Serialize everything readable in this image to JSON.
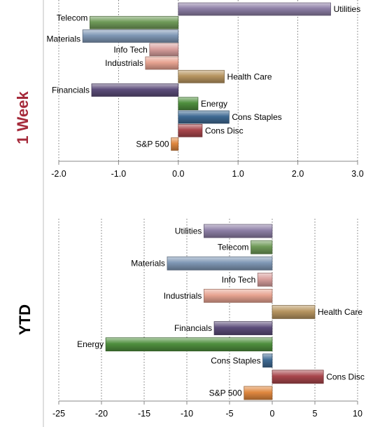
{
  "colors": {
    "Utilities": "#8d7fa6",
    "Telecom": "#6f9a58",
    "Materials": "#7f97b5",
    "Info Tech": "#d9a09e",
    "Industrials": "#e7a391",
    "Health Care": "#b79560",
    "Financials": "#5c4d7a",
    "Energy": "#4f8f3e",
    "Cons Staples": "#3f6a93",
    "Cons Disc": "#a8464c",
    "S&P 500": "#e0883f"
  },
  "chart_data": [
    {
      "type": "bar",
      "orientation": "horizontal",
      "title": "1 Week",
      "title_color": "#a52a3a",
      "categories": [
        "Utilities",
        "Telecom",
        "Materials",
        "Info Tech",
        "Industrials",
        "Health Care",
        "Financials",
        "Energy",
        "Cons Staples",
        "Cons Disc",
        "S&P 500"
      ],
      "values": [
        2.55,
        -1.48,
        -1.6,
        -0.48,
        -0.55,
        0.77,
        -1.45,
        0.33,
        0.85,
        0.4,
        -0.12
      ],
      "xlim": [
        -2.0,
        3.0
      ],
      "xticks": [
        "-2.0",
        "-1.0",
        "0.0",
        "1.0",
        "2.0",
        "3.0"
      ],
      "grid": true
    },
    {
      "type": "bar",
      "orientation": "horizontal",
      "title": "YTD",
      "title_color": "#000000",
      "categories": [
        "Utilities",
        "Telecom",
        "Materials",
        "Info Tech",
        "Industrials",
        "Health Care",
        "Financials",
        "Energy",
        "Cons Staples",
        "Cons Disc",
        "S&P 500"
      ],
      "values": [
        -8.0,
        -2.5,
        -12.3,
        -1.7,
        -8.0,
        5.0,
        -6.8,
        -19.5,
        -1.1,
        6.0,
        -3.3
      ],
      "xlim": [
        -25,
        10
      ],
      "xticks": [
        "-25",
        "-20",
        "-15",
        "-10",
        "-5",
        "0",
        "5",
        "10"
      ],
      "grid": true
    }
  ]
}
